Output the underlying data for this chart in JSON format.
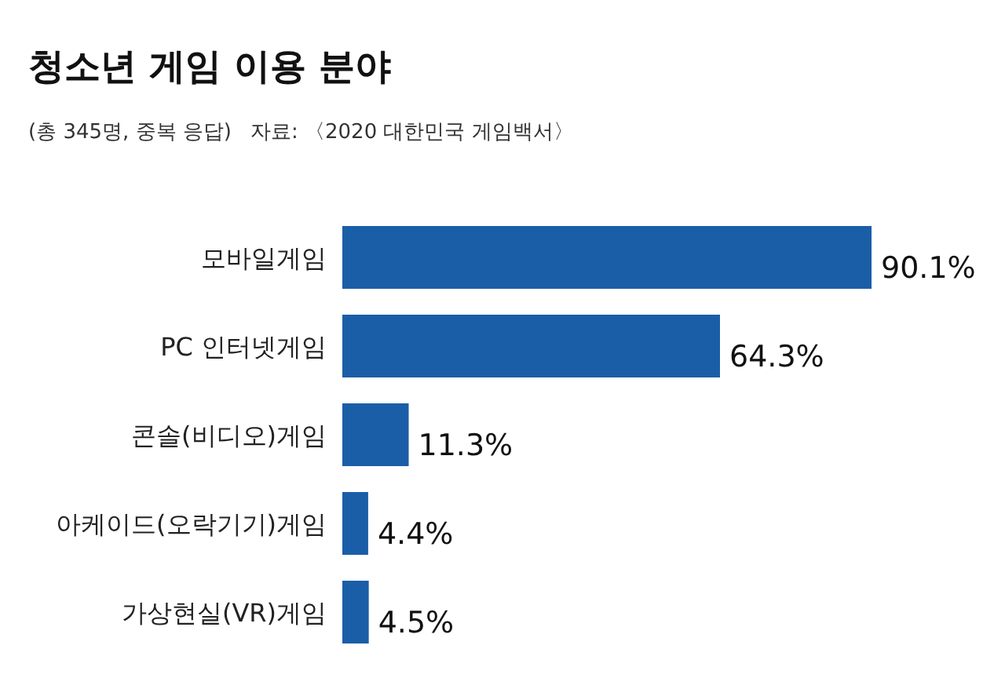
{
  "chart_data": {
    "type": "bar",
    "orientation": "horizontal",
    "title": "청소년 게임 이용 분야",
    "subtitle": "(총 345명, 중복 응답)",
    "annotations": [
      "자료: 〈2020 대한민국 게임백서〉"
    ],
    "categories": [
      "모바일게임",
      "PC 인터넷게임",
      "콘솔(비디오)게임",
      "아케이드(오락기기)게임",
      "가상현실(VR)게임"
    ],
    "values": [
      90.1,
      64.3,
      11.3,
      4.4,
      4.5
    ],
    "value_labels": [
      "90.1%",
      "64.3%",
      "11.3%",
      "4.4%",
      "4.5%"
    ],
    "color": "#1a5ea8"
  }
}
